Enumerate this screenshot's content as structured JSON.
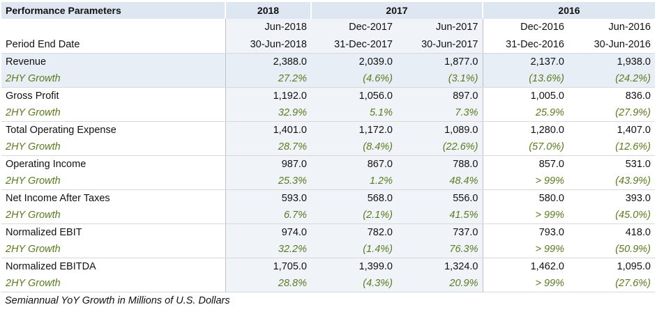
{
  "header": {
    "label": "Performance Parameters",
    "years": [
      "2018",
      "2017",
      "2016"
    ]
  },
  "periods": [
    "Jun-2018",
    "Dec-2017",
    "Jun-2017",
    "Dec-2016",
    "Jun-2016"
  ],
  "period_end": {
    "label": "Period End Date",
    "values": [
      "30-Jun-2018",
      "31-Dec-2017",
      "30-Jun-2017",
      "31-Dec-2016",
      "30-Jun-2016"
    ]
  },
  "metrics": [
    {
      "name": "Revenue",
      "values": [
        "2,388.0",
        "2,039.0",
        "1,877.0",
        "2,137.0",
        "1,938.0"
      ],
      "growth_label": "2HY Growth",
      "growth": [
        "27.2%",
        "(4.6%)",
        "(3.1%)",
        "(13.6%)",
        "(24.2%)"
      ]
    },
    {
      "name": "Gross Profit",
      "values": [
        "1,192.0",
        "1,056.0",
        "897.0",
        "1,005.0",
        "836.0"
      ],
      "growth_label": "2HY Growth",
      "growth": [
        "32.9%",
        "5.1%",
        "7.3%",
        "25.9%",
        "(27.9%)"
      ]
    },
    {
      "name": "Total Operating Expense",
      "values": [
        "1,401.0",
        "1,172.0",
        "1,089.0",
        "1,280.0",
        "1,407.0"
      ],
      "growth_label": "2HY Growth",
      "growth": [
        "28.7%",
        "(8.4%)",
        "(22.6%)",
        "(57.0%)",
        "(12.6%)"
      ]
    },
    {
      "name": "Operating Income",
      "values": [
        "987.0",
        "867.0",
        "788.0",
        "857.0",
        "531.0"
      ],
      "growth_label": "2HY Growth",
      "growth": [
        "25.3%",
        "1.2%",
        "48.4%",
        "> 99%",
        "(43.9%)"
      ]
    },
    {
      "name": "Net Income After Taxes",
      "values": [
        "593.0",
        "568.0",
        "556.0",
        "580.0",
        "393.0"
      ],
      "growth_label": "2HY Growth",
      "growth": [
        "6.7%",
        "(2.1%)",
        "41.5%",
        "> 99%",
        "(45.0%)"
      ]
    },
    {
      "name": "Normalized EBIT",
      "values": [
        "974.0",
        "782.0",
        "737.0",
        "793.0",
        "418.0"
      ],
      "growth_label": "2HY Growth",
      "growth": [
        "32.2%",
        "(1.4%)",
        "76.3%",
        "> 99%",
        "(50.9%)"
      ]
    },
    {
      "name": "Normalized EBITDA",
      "values": [
        "1,705.0",
        "1,399.0",
        "1,324.0",
        "1,462.0",
        "1,095.0"
      ],
      "growth_label": "2HY Growth",
      "growth": [
        "28.8%",
        "(4.3%)",
        "20.9%",
        "> 99%",
        "(27.6%)"
      ]
    }
  ],
  "footnote": "Semiannual YoY Growth in Millions of U.S. Dollars"
}
